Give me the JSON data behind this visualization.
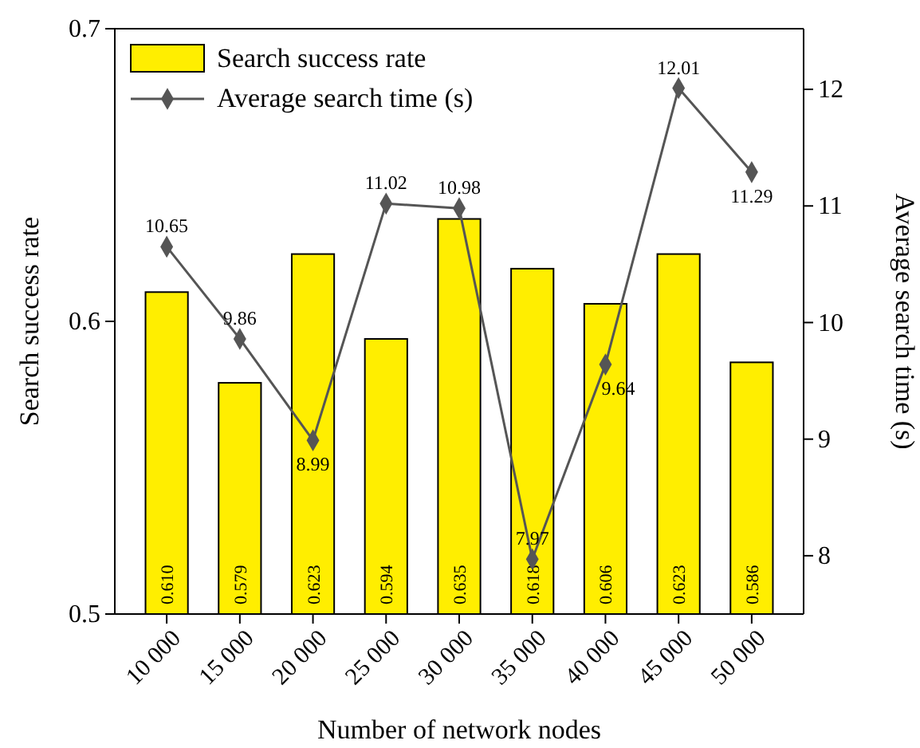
{
  "chart_data": {
    "type": "bar",
    "xlabel": "Number of network nodes",
    "ylabel": "Search success rate",
    "y2label": "Average search time (s)",
    "categories": [
      "10 000",
      "15 000",
      "20 000",
      "25 000",
      "30 000",
      "35 000",
      "40 000",
      "45 000",
      "50 000"
    ],
    "series": [
      {
        "name": "Search success rate",
        "color": "#ffee00",
        "values": [
          0.61,
          0.579,
          0.623,
          0.594,
          0.635,
          0.618,
          0.606,
          0.623,
          0.586
        ],
        "value_labels": [
          "0.610",
          "0.579",
          "0.623",
          "0.594",
          "0.635",
          "0.618",
          "0.606",
          "0.623",
          "0.586"
        ]
      },
      {
        "name": "Average search time (s)",
        "type": "line",
        "axis": "y2",
        "color": "#555555",
        "marker": "diamond",
        "values": [
          10.65,
          9.86,
          8.99,
          11.02,
          10.98,
          7.97,
          9.64,
          12.01,
          11.29
        ]
      }
    ],
    "ylim": [
      0.5,
      0.7
    ],
    "yticks": [
      0.5,
      0.6,
      0.7
    ],
    "y2lim": [
      7.5,
      12.52
    ],
    "y2ticks": [
      8,
      9,
      10,
      11,
      12
    ],
    "data_labels": true,
    "legend": "top left",
    "grid": false
  }
}
